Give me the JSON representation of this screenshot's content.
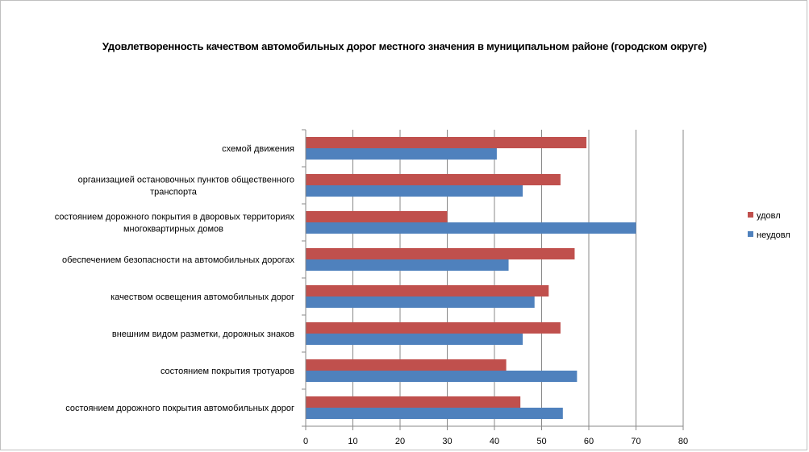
{
  "chart_data": {
    "type": "bar",
    "orientation": "horizontal",
    "title": "Удовлетворенность качеством автомобильных дорог местного значения в муниципальном районе (городском округе)",
    "categories": [
      [
        "схемой движения"
      ],
      [
        "организацией остановочных пунктов общественного",
        "транспорта"
      ],
      [
        "состоянием дорожного покрытия в дворовых территориях",
        "многоквартирных домов"
      ],
      [
        "обеспечением  безопасности на автомобильных дорогах"
      ],
      [
        "качеством освещения  автомобильных дорог"
      ],
      [
        "внешним видом разметки, дорожных знаков"
      ],
      [
        "состоянием покрытия тротуаров"
      ],
      [
        "состоянием дорожного покрытия автомобильных дорог"
      ]
    ],
    "series": [
      {
        "name": "удовл",
        "color": "#c0504d",
        "values": [
          59.5,
          54,
          30,
          57,
          51.5,
          54,
          42.5,
          45.5
        ]
      },
      {
        "name": "неудовл",
        "color": "#4f81bd",
        "values": [
          40.5,
          46,
          70,
          43,
          48.5,
          46,
          57.5,
          54.5
        ]
      }
    ],
    "xlim": [
      0,
      80
    ],
    "xticks": [
      "0",
      "10",
      "20",
      "30",
      "40",
      "50",
      "60",
      "70",
      "80"
    ],
    "grid": true,
    "legend_position": "right"
  }
}
